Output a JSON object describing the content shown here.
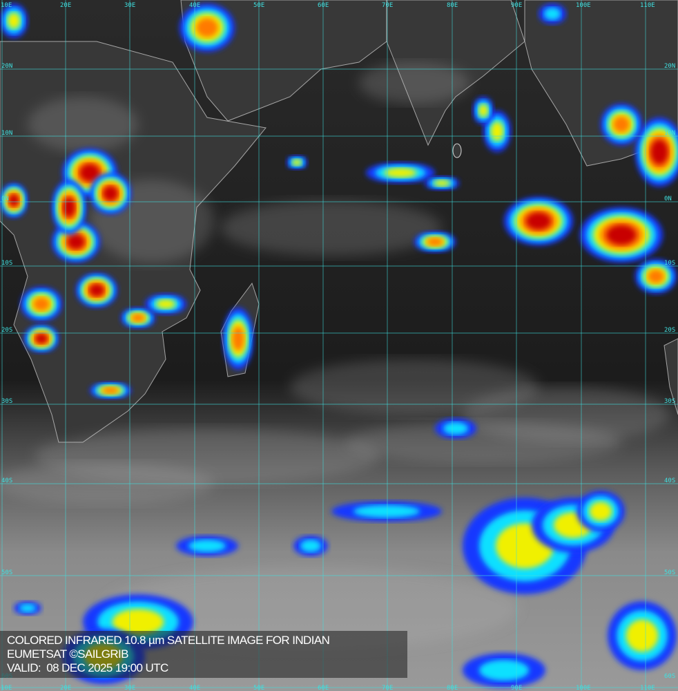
{
  "caption": {
    "line1": "COLORED INFRARED 10.8 µm SATELLITE IMAGE FOR INDIAN",
    "line2": "EUMETSAT ©SAILGRIB",
    "line3": "VALID:  08 DEC 2025 19:00 UTC"
  },
  "grid": {
    "longitudes": [
      "10E",
      "20E",
      "30E",
      "40E",
      "50E",
      "60E",
      "70E",
      "80E",
      "90E",
      "100E",
      "110E"
    ],
    "latitudes": [
      "20N",
      "10N",
      "0N",
      "10S",
      "20S",
      "30S",
      "40S",
      "50S",
      "60S"
    ],
    "color": "#3fe0e0"
  },
  "color_scale": {
    "cold_clear": "#1c1c1c",
    "blue": "#1838ff",
    "cyan": "#10e0ff",
    "yellow": "#f0f000",
    "orange": "#ff7a00",
    "red": "#c80000"
  }
}
